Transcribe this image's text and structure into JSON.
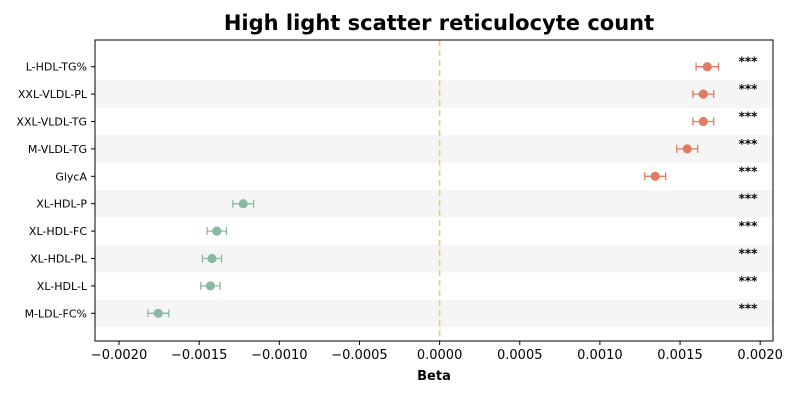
{
  "chart_data": {
    "type": "scatter",
    "title": "High light scatter reticulocyte count",
    "xlabel": "Beta",
    "ylabel": "",
    "xlim": [
      -0.00215,
      0.00208
    ],
    "xticks": [
      -0.002,
      -0.0015,
      -0.001,
      -0.0005,
      0.0,
      0.0005,
      0.001,
      0.0015,
      0.002
    ],
    "xtick_labels": [
      "−0.0020",
      "−0.0015",
      "−0.0010",
      "−0.0005",
      "0.0000",
      "0.0005",
      "0.0010",
      "0.0015",
      "0.0020"
    ],
    "reference_line": 0.0,
    "grid": false,
    "alternating_row_bands": true,
    "colors": {
      "positive": "#e07b65",
      "negative": "#8ab9a3",
      "reference_line": "#f2c77e",
      "band": "#f5f5f5"
    },
    "categories": [
      "L-HDL-TG%",
      "XXL-VLDL-PL",
      "XXL-VLDL-TG",
      "M-VLDL-TG",
      "GlycA",
      "XL-HDL-P",
      "XL-HDL-FC",
      "XL-HDL-PL",
      "XL-HDL-L",
      "M-LDL-FC%"
    ],
    "points": [
      {
        "label": "L-HDL-TG%",
        "beta": 0.00167,
        "ci_low": 0.0016,
        "ci_high": 0.00174,
        "sig": "***"
      },
      {
        "label": "XXL-VLDL-PL",
        "beta": 0.001645,
        "ci_low": 0.00158,
        "ci_high": 0.00171,
        "sig": "***"
      },
      {
        "label": "XXL-VLDL-TG",
        "beta": 0.001645,
        "ci_low": 0.00158,
        "ci_high": 0.00171,
        "sig": "***"
      },
      {
        "label": "M-VLDL-TG",
        "beta": 0.001545,
        "ci_low": 0.00148,
        "ci_high": 0.00161,
        "sig": "***"
      },
      {
        "label": "GlycA",
        "beta": 0.001345,
        "ci_low": 0.00128,
        "ci_high": 0.00141,
        "sig": "***"
      },
      {
        "label": "XL-HDL-P",
        "beta": -0.001225,
        "ci_low": -0.00129,
        "ci_high": -0.00116,
        "sig": "***"
      },
      {
        "label": "XL-HDL-FC",
        "beta": -0.00139,
        "ci_low": -0.00145,
        "ci_high": -0.00133,
        "sig": "***"
      },
      {
        "label": "XL-HDL-PL",
        "beta": -0.00142,
        "ci_low": -0.00148,
        "ci_high": -0.00136,
        "sig": "***"
      },
      {
        "label": "XL-HDL-L",
        "beta": -0.00143,
        "ci_low": -0.00149,
        "ci_high": -0.00137,
        "sig": "***"
      },
      {
        "label": "M-LDL-FC%",
        "beta": -0.001755,
        "ci_low": -0.00182,
        "ci_high": -0.00169,
        "sig": "***"
      }
    ]
  }
}
